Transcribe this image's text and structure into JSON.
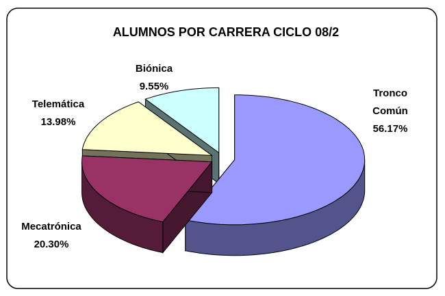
{
  "chart_data": {
    "type": "pie",
    "title": "ALUMNOS POR CARRERA CICLO 08/2",
    "categories": [
      "Tronco Común",
      "Mecatrónica",
      "Telemática",
      "Biónica"
    ],
    "values": [
      56.17,
      20.3,
      13.98,
      9.55
    ],
    "value_labels": [
      "56.17%",
      "20.30%",
      "13.98%",
      "9.55%"
    ],
    "colors": [
      "#9999ff",
      "#993366",
      "#ffffcc",
      "#ccffff"
    ],
    "three_d": true,
    "exploded": true
  }
}
